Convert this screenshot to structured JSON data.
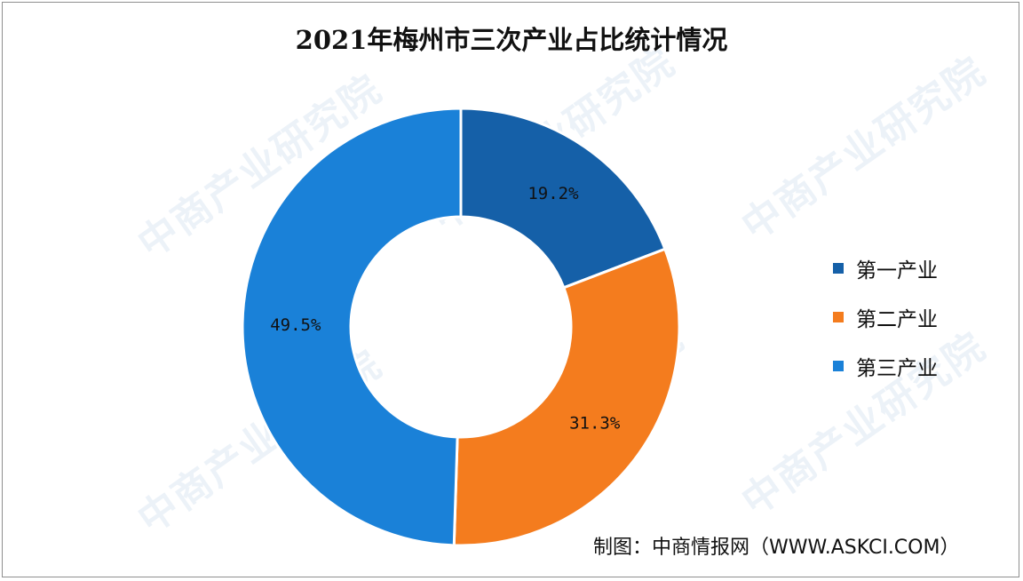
{
  "chart_data": {
    "type": "pie",
    "title": "2021年梅州市三次产业占比统计情况",
    "categories": [
      "第一产业",
      "第二产业",
      "第三产业"
    ],
    "values": [
      19.2,
      31.3,
      49.5
    ],
    "data_labels": [
      "19.2%",
      "31.3%",
      "49.5%"
    ],
    "colors": [
      "#1560a8",
      "#f47c1e",
      "#1a81d8"
    ],
    "donut": true,
    "legend_position": "right"
  },
  "source_text": "制图：中商情报网（WWW.ASKCI.COM）",
  "watermark": "中商产业研究院"
}
